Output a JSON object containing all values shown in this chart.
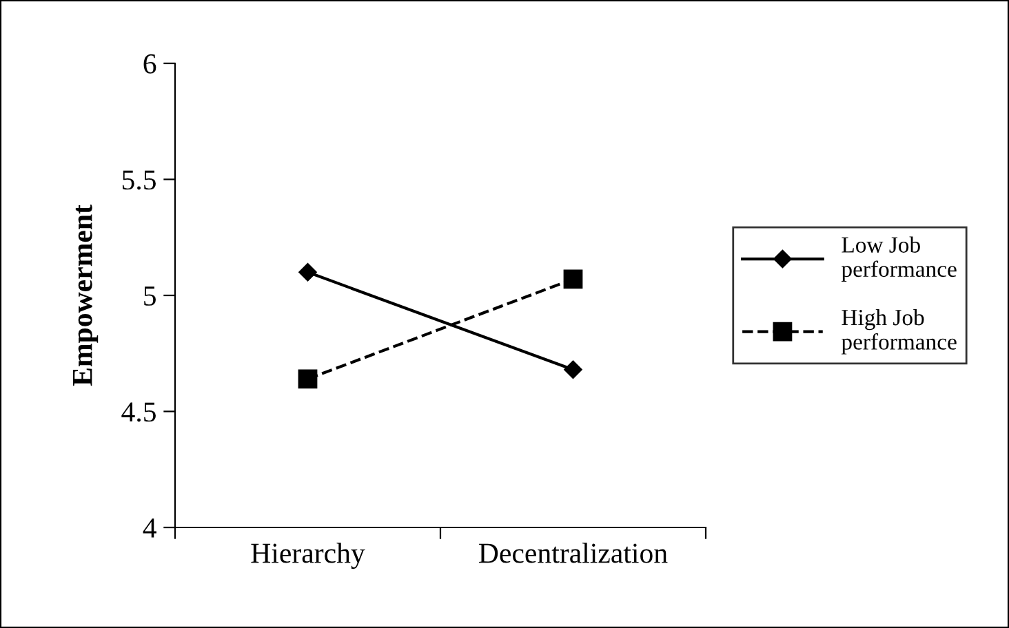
{
  "chart_data": {
    "type": "line",
    "ylabel": "Empowerment",
    "categories": [
      "Hierarchy",
      "Decentralization"
    ],
    "series": [
      {
        "name": "Low Job performance",
        "color": "#000000",
        "values": [
          5.1,
          4.68
        ],
        "marker": "diamond",
        "line_style": "solid"
      },
      {
        "name": "High Job performance",
        "color": "#000000",
        "values": [
          4.64,
          5.07
        ],
        "marker": "square",
        "line_style": "dashed"
      }
    ],
    "ylim": [
      4,
      6
    ],
    "yticks": [
      4,
      4.5,
      5,
      5.5,
      6
    ],
    "grid": false,
    "legend": "right"
  }
}
